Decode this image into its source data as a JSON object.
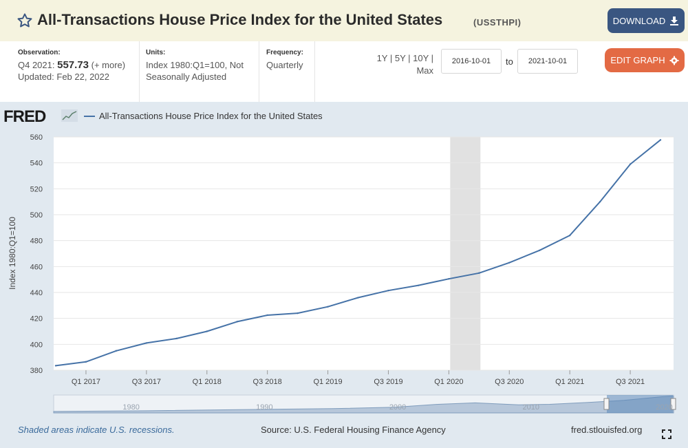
{
  "header": {
    "title": "All-Transactions House Price Index for the United States",
    "series_id": "(USSTHPI)",
    "download_label": "DOWNLOAD"
  },
  "meta": {
    "observation_label": "Observation:",
    "observation_period": "Q4 2021:",
    "observation_value": "557.73",
    "observation_more": "(+ more)",
    "updated": "Updated: Feb 22, 2022",
    "units_label": "Units:",
    "units_value": "Index 1980:Q1=100, Not Seasonally Adjusted",
    "frequency_label": "Frequency:",
    "frequency_value": "Quarterly",
    "range_links": "1Y | 5Y | 10Y | Max",
    "start_date": "2016-10-01",
    "to_label": "to",
    "end_date": "2021-10-01",
    "edit_label": "EDIT GRAPH"
  },
  "chart_header": {
    "logo": "FRED",
    "legend_label": "All-Transactions House Price Index for the United States"
  },
  "footer": {
    "recession_note": "Shaded areas indicate U.S. recessions.",
    "source": "Source: U.S. Federal Housing Finance Agency",
    "url": "fred.stlouisfed.org"
  },
  "colors": {
    "line": "#4572a7",
    "recession": "#e1e1e1",
    "panel": "#e1e9f0",
    "download": "#3a5681",
    "edit": "#e36a44"
  },
  "chart_data": {
    "type": "line",
    "title": "All-Transactions House Price Index for the United States",
    "ylabel": "Index 1980:Q1=100",
    "xlabel": "",
    "ylim": [
      380,
      560
    ],
    "yticks": [
      380,
      400,
      420,
      440,
      460,
      480,
      500,
      520,
      540,
      560
    ],
    "grid": true,
    "x": [
      "Q4 2016",
      "Q1 2017",
      "Q2 2017",
      "Q3 2017",
      "Q4 2017",
      "Q1 2018",
      "Q2 2018",
      "Q3 2018",
      "Q4 2018",
      "Q1 2019",
      "Q2 2019",
      "Q3 2019",
      "Q4 2019",
      "Q1 2020",
      "Q2 2020",
      "Q3 2020",
      "Q4 2020",
      "Q1 2021",
      "Q2 2021",
      "Q3 2021",
      "Q4 2021"
    ],
    "xticks": [
      "Q1 2017",
      "Q3 2017",
      "Q1 2018",
      "Q3 2018",
      "Q1 2019",
      "Q3 2019",
      "Q1 2020",
      "Q3 2020",
      "Q1 2021",
      "Q3 2021"
    ],
    "series": [
      {
        "name": "All-Transactions House Price Index for the United States",
        "values": [
          383.5,
          386.5,
          395.0,
          401.0,
          404.5,
          410.0,
          417.5,
          422.5,
          424.0,
          429.0,
          436.0,
          441.5,
          445.5,
          450.5,
          455.0,
          463.0,
          472.5,
          484.0,
          510.0,
          539.0,
          557.73
        ]
      }
    ],
    "recession": {
      "start": "Q1 2020",
      "end": "Q2 2020"
    },
    "navigator_labels": [
      "1980",
      "1990",
      "2000",
      "2010",
      "2020"
    ]
  }
}
